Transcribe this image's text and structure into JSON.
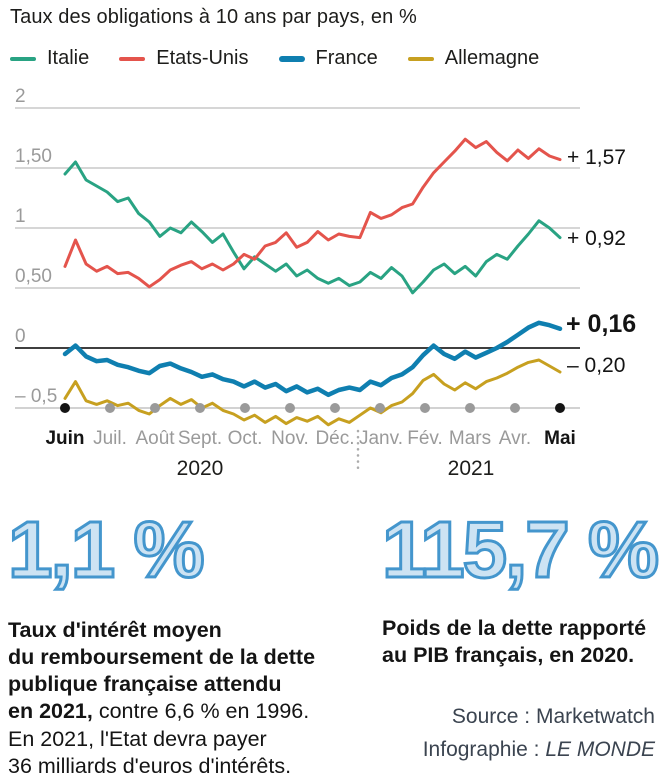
{
  "header": {
    "title": "Taux des obligations à 10 ans par pays, en %"
  },
  "legend": [
    {
      "label": "Italie",
      "color": "#29a383"
    },
    {
      "label": "Etats-Unis",
      "color": "#e4544c"
    },
    {
      "label": "France",
      "color": "#0f7fb0"
    },
    {
      "label": "Allemagne",
      "color": "#c7a020"
    }
  ],
  "chart_data": {
    "type": "line",
    "title": "Taux des obligations à 10 ans par pays, en %",
    "unit": "%",
    "ylim": [
      -0.7,
      2.1
    ],
    "grid": true,
    "categories": [
      "Juin",
      "Juil.",
      "Août",
      "Sept.",
      "Oct.",
      "Nov.",
      "Déc.",
      "Janv.",
      "Fév.",
      "Mars",
      "Avr.",
      "Mai"
    ],
    "years": [
      "2020",
      "2021"
    ],
    "y_ticks": [
      "2",
      "1,50",
      "1",
      "0,50",
      "0",
      "– 0,5"
    ],
    "points_per_month": 4,
    "series": [
      {
        "name": "Italie",
        "color": "#29a383",
        "end_value": 0.92,
        "end_label": "+ 0,92",
        "values": [
          1.45,
          1.55,
          1.4,
          1.35,
          1.3,
          1.22,
          1.25,
          1.12,
          1.05,
          0.93,
          1.0,
          0.96,
          1.05,
          0.97,
          0.88,
          0.95,
          0.8,
          0.66,
          0.76,
          0.7,
          0.64,
          0.7,
          0.6,
          0.65,
          0.58,
          0.54,
          0.58,
          0.52,
          0.55,
          0.63,
          0.58,
          0.67,
          0.6,
          0.46,
          0.55,
          0.65,
          0.7,
          0.62,
          0.68,
          0.6,
          0.72,
          0.78,
          0.74,
          0.85,
          0.95,
          1.06,
          1.0,
          0.92
        ]
      },
      {
        "name": "Etats-Unis",
        "color": "#e4544c",
        "end_value": 1.57,
        "end_label": "+ 1,57",
        "values": [
          0.68,
          0.9,
          0.7,
          0.64,
          0.68,
          0.62,
          0.63,
          0.58,
          0.51,
          0.57,
          0.65,
          0.69,
          0.72,
          0.66,
          0.7,
          0.65,
          0.7,
          0.78,
          0.74,
          0.85,
          0.88,
          0.96,
          0.84,
          0.88,
          0.97,
          0.9,
          0.95,
          0.93,
          0.92,
          1.13,
          1.08,
          1.11,
          1.17,
          1.2,
          1.34,
          1.46,
          1.55,
          1.64,
          1.74,
          1.67,
          1.72,
          1.63,
          1.56,
          1.65,
          1.58,
          1.66,
          1.6,
          1.57
        ]
      },
      {
        "name": "Allemagne",
        "color": "#c7a020",
        "end_value": -0.2,
        "end_label": "– 0,20",
        "values": [
          -0.42,
          -0.28,
          -0.44,
          -0.47,
          -0.44,
          -0.48,
          -0.46,
          -0.52,
          -0.55,
          -0.48,
          -0.42,
          -0.47,
          -0.43,
          -0.5,
          -0.46,
          -0.52,
          -0.55,
          -0.6,
          -0.56,
          -0.62,
          -0.57,
          -0.63,
          -0.58,
          -0.61,
          -0.57,
          -0.64,
          -0.59,
          -0.62,
          -0.56,
          -0.5,
          -0.54,
          -0.48,
          -0.45,
          -0.38,
          -0.27,
          -0.22,
          -0.3,
          -0.35,
          -0.29,
          -0.34,
          -0.28,
          -0.25,
          -0.21,
          -0.16,
          -0.12,
          -0.1,
          -0.15,
          -0.2
        ]
      },
      {
        "name": "France",
        "color": "#0f7fb0",
        "end_value": 0.16,
        "end_label": "+ 0,16",
        "values": [
          -0.05,
          0.02,
          -0.07,
          -0.11,
          -0.1,
          -0.14,
          -0.16,
          -0.19,
          -0.21,
          -0.15,
          -0.13,
          -0.17,
          -0.2,
          -0.24,
          -0.22,
          -0.26,
          -0.28,
          -0.32,
          -0.28,
          -0.33,
          -0.3,
          -0.36,
          -0.32,
          -0.37,
          -0.34,
          -0.39,
          -0.35,
          -0.33,
          -0.35,
          -0.28,
          -0.31,
          -0.25,
          -0.22,
          -0.16,
          -0.06,
          0.02,
          -0.05,
          -0.09,
          -0.03,
          -0.08,
          -0.04,
          0.0,
          0.05,
          0.11,
          0.17,
          0.21,
          0.19,
          0.16
        ]
      }
    ]
  },
  "stats": {
    "left": {
      "value": "1,1 %",
      "bold": "Taux d'intérêt moyen\ndu remboursement de la dette\npublique française attendu\nen 2021,",
      "regular": " contre 6,6 % en 1996.\nEn 2021, l'Etat devra payer\n36 milliards d'euros d'intérêts."
    },
    "right": {
      "value": "115,7 %",
      "bold": "Poids de la dette rapporté\nau PIB français, en 2020."
    }
  },
  "footer": {
    "source": "Source : Marketwatch",
    "credit_label": "Infographie : ",
    "credit_name": "LE MONDE"
  }
}
